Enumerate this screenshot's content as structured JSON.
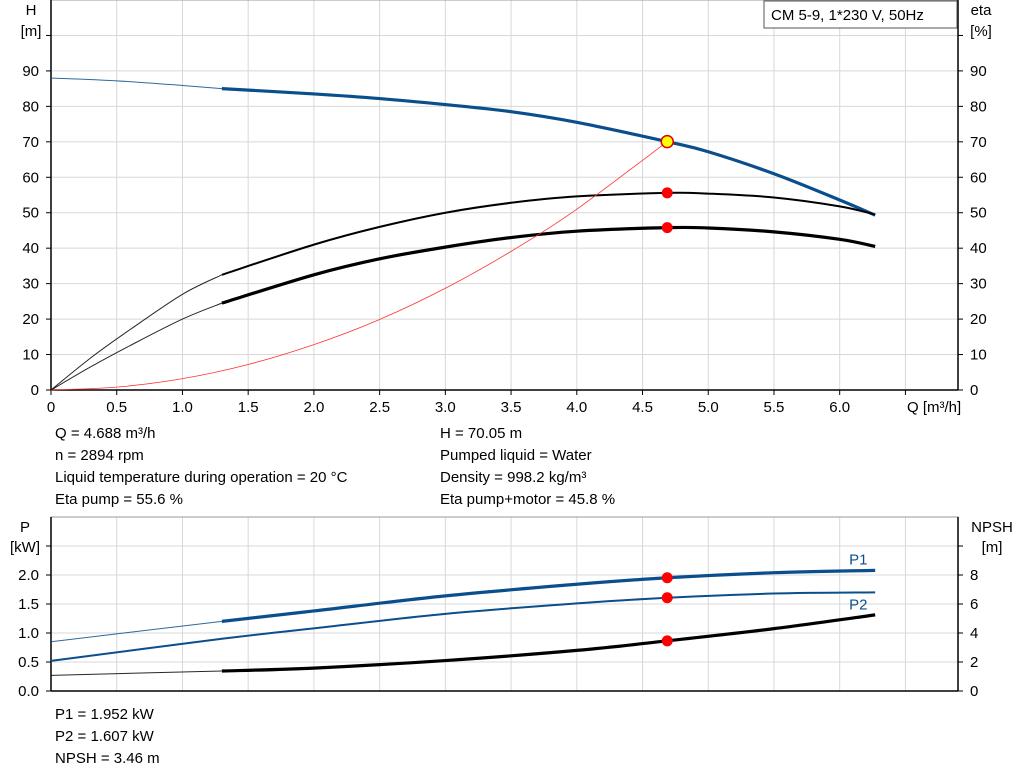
{
  "chart_data": [
    {
      "type": "line",
      "legend_box": "CM 5-9, 1*230 V, 50Hz",
      "xlabel": "Q [m³/h]",
      "ylabel_left": [
        "H",
        "[m]"
      ],
      "ylabel_right": [
        "eta",
        "[%]"
      ],
      "xlim": [
        0,
        6.9
      ],
      "ylim": [
        0,
        110
      ],
      "grid": true,
      "x_ticks": [
        "0",
        "0.5",
        "1.0",
        "1.5",
        "2.0",
        "2.5",
        "3.0",
        "3.5",
        "4.0",
        "4.5",
        "5.0",
        "5.5",
        "6.0"
      ],
      "y_ticks": [
        "0",
        "10",
        "20",
        "30",
        "40",
        "50",
        "60",
        "70",
        "80",
        "90"
      ],
      "series": [
        {
          "key": "H",
          "color": "#0a4f8c",
          "thin_until": 1.3,
          "x": [
            0,
            0.5,
            1.0,
            1.3,
            2.0,
            2.5,
            3.0,
            3.5,
            4.0,
            4.688,
            5.0,
            5.5,
            6.0,
            6.27
          ],
          "y": [
            88,
            87.2,
            85.9,
            85,
            83.5,
            82.2,
            80.5,
            78.5,
            75.5,
            70.05,
            67.2,
            61,
            53.6,
            49.3
          ]
        },
        {
          "key": "eta_pump",
          "color": "#000000",
          "thin_until": 1.3,
          "x": [
            0,
            0.3,
            0.6,
            1.0,
            1.3,
            2.0,
            2.5,
            3.0,
            3.5,
            4.0,
            4.688,
            5.0,
            5.5,
            6.0,
            6.27
          ],
          "y": [
            0,
            9,
            17,
            27,
            32.5,
            41,
            46,
            50,
            52.8,
            54.6,
            55.6,
            55.4,
            54.3,
            51.8,
            49.5
          ]
        },
        {
          "key": "eta_total",
          "color": "#000000",
          "thin_until": 1.3,
          "x": [
            0,
            0.3,
            0.6,
            1.0,
            1.3,
            2.0,
            2.5,
            3.0,
            3.5,
            4.0,
            4.688,
            5.0,
            5.5,
            6.0,
            6.27
          ],
          "y": [
            0,
            6.5,
            12.5,
            20,
            24.5,
            32.5,
            37,
            40.3,
            43,
            44.8,
            45.8,
            45.7,
            44.6,
            42.5,
            40.5
          ]
        },
        {
          "key": "system_curve",
          "color": "#ff3333",
          "x": [
            0,
            0.5,
            1.0,
            1.5,
            2.0,
            2.5,
            3.0,
            3.5,
            4.0,
            4.688
          ],
          "y": [
            0,
            0.8,
            3.2,
            7.2,
            12.8,
            19.9,
            28.7,
            39.1,
            51.0,
            70.05
          ]
        }
      ],
      "duty_points": [
        {
          "x": 4.688,
          "y": 70.05,
          "fill": "#ffff00",
          "stroke": "#e00000"
        },
        {
          "x": 4.688,
          "y": 55.6,
          "fill": "#ff0000"
        },
        {
          "x": 4.688,
          "y": 45.8,
          "fill": "#ff0000"
        }
      ]
    },
    {
      "type": "line",
      "ylabel_left": [
        "P",
        "[kW]"
      ],
      "ylabel_right": [
        "NPSH",
        "[m]"
      ],
      "xlim": [
        0,
        6.9
      ],
      "ylim": [
        0,
        3.0
      ],
      "ylim_right": [
        0,
        12
      ],
      "grid": true,
      "y_ticks": [
        "0.0",
        "0.5",
        "1.0",
        "1.5",
        "2.0"
      ],
      "y_ticks_right": [
        "0",
        "2",
        "4",
        "6",
        "8"
      ],
      "series": [
        {
          "name": "P1",
          "color": "#0a4f8c",
          "thin_until": 1.3,
          "x": [
            0,
            1.3,
            2.0,
            3.0,
            4.0,
            4.688,
            5.5,
            6.27
          ],
          "y": [
            0.85,
            1.2,
            1.38,
            1.64,
            1.84,
            1.952,
            2.04,
            2.08
          ]
        },
        {
          "name": "P2",
          "color": "#0a4f8c",
          "thin_until": -1,
          "x": [
            0,
            1.3,
            2.0,
            3.0,
            4.0,
            4.688,
            5.5,
            6.27
          ],
          "y": [
            0.52,
            0.9,
            1.08,
            1.33,
            1.51,
            1.607,
            1.68,
            1.7
          ]
        },
        {
          "key": "NPSH",
          "axis": "right",
          "color": "#000000",
          "thin_until": 1.3,
          "x": [
            0,
            1.3,
            2.0,
            3.0,
            4.0,
            4.688,
            5.5,
            6.27
          ],
          "y": [
            1.08,
            1.38,
            1.58,
            2.1,
            2.8,
            3.46,
            4.3,
            5.25
          ]
        }
      ],
      "duty_points": [
        {
          "x": 4.688,
          "y": 1.952,
          "fill": "#ff0000"
        },
        {
          "x": 4.688,
          "y": 1.607,
          "fill": "#ff0000"
        },
        {
          "x": 4.688,
          "y": 0.865,
          "fill": "#ff0000"
        }
      ]
    }
  ],
  "info_top_left": [
    "Q = 4.688 m³/h",
    "n = 2894 rpm",
    "Liquid temperature during operation = 20 °C",
    "Eta pump = 55.6 %"
  ],
  "info_top_right": [
    "H = 70.05 m",
    "Pumped liquid = Water",
    "Density = 998.2 kg/m³",
    "Eta pump+motor = 45.8 %"
  ],
  "info_bottom": [
    "P1 = 1.952 kW",
    "P2 = 1.607 kW",
    "NPSH = 3.46 m"
  ]
}
